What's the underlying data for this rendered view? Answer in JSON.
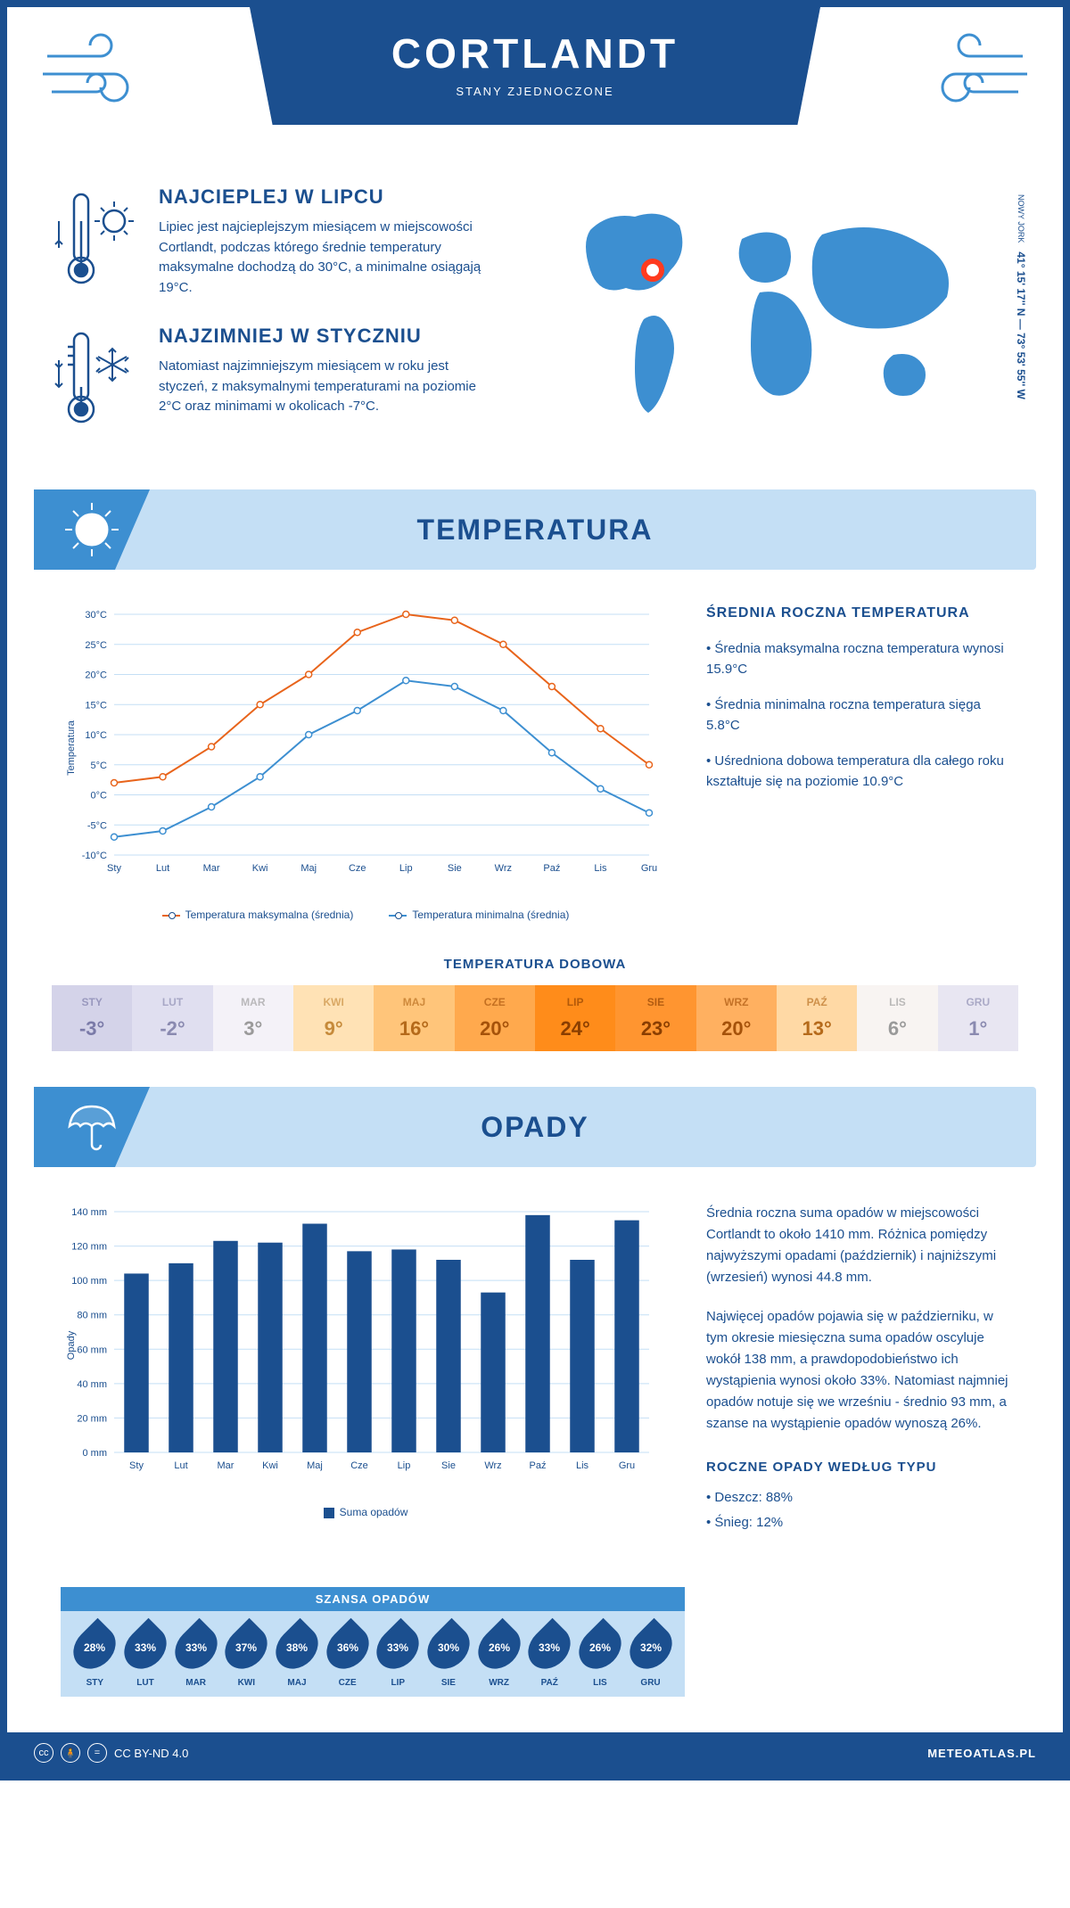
{
  "header": {
    "city": "CORTLANDT",
    "country": "STANY ZJEDNOCZONE",
    "coords": "41° 15' 17'' N — 73° 53' 55'' W",
    "state": "NOWY JORK"
  },
  "intro": {
    "hot": {
      "title": "NAJCIEPLEJ W LIPCU",
      "text": "Lipiec jest najcieplejszym miesiącem w miejscowości Cortlandt, podczas którego średnie temperatury maksymalne dochodzą do 30°C, a minimalne osiągają 19°C."
    },
    "cold": {
      "title": "NAJZIMNIEJ W STYCZNIU",
      "text": "Natomiast najzimniejszym miesiącem w roku jest styczeń, z maksymalnymi temperaturami na poziomie 2°C oraz minimami w okolicach -7°C."
    }
  },
  "months": [
    "Sty",
    "Lut",
    "Mar",
    "Kwi",
    "Maj",
    "Cze",
    "Lip",
    "Sie",
    "Wrz",
    "Paź",
    "Lis",
    "Gru"
  ],
  "months_upper": [
    "STY",
    "LUT",
    "MAR",
    "KWI",
    "MAJ",
    "CZE",
    "LIP",
    "SIE",
    "WRZ",
    "PAŹ",
    "LIS",
    "GRU"
  ],
  "temperature": {
    "section_title": "TEMPERATURA",
    "ylabel": "Temperatura",
    "ylim": [
      -10,
      30
    ],
    "ytick_step": 5,
    "max_series": {
      "label": "Temperatura maksymalna (średnia)",
      "color": "#e8641b",
      "values": [
        2,
        3,
        8,
        15,
        20,
        27,
        30,
        29,
        25,
        18,
        11,
        5
      ]
    },
    "min_series": {
      "label": "Temperatura minimalna (średnia)",
      "color": "#3d8fd1",
      "values": [
        -7,
        -6,
        -2,
        3,
        10,
        14,
        19,
        18,
        14,
        7,
        1,
        -3
      ]
    },
    "grid_color": "#c4dff5",
    "info_title": "ŚREDNIA ROCZNA TEMPERATURA",
    "info": [
      "• Średnia maksymalna roczna temperatura wynosi 15.9°C",
      "• Średnia minimalna roczna temperatura sięga 5.8°C",
      "• Uśredniona dobowa temperatura dla całego roku kształtuje się na poziomie 10.9°C"
    ],
    "daily_title": "TEMPERATURA DOBOWA",
    "daily": [
      {
        "v": "-3°",
        "bg": "#d4d3e9",
        "fg": "#7a7aa8"
      },
      {
        "v": "-2°",
        "bg": "#e0dff0",
        "fg": "#8a8ab0"
      },
      {
        "v": "3°",
        "bg": "#f4f2f8",
        "fg": "#9a9a9a"
      },
      {
        "v": "9°",
        "bg": "#ffe2b5",
        "fg": "#c68a3a"
      },
      {
        "v": "16°",
        "bg": "#ffc57a",
        "fg": "#b56a1a"
      },
      {
        "v": "20°",
        "bg": "#ffa94d",
        "fg": "#a5520a"
      },
      {
        "v": "24°",
        "bg": "#ff8c1a",
        "fg": "#8a3e00"
      },
      {
        "v": "23°",
        "bg": "#ff9530",
        "fg": "#8a3e00"
      },
      {
        "v": "20°",
        "bg": "#ffb060",
        "fg": "#a5520a"
      },
      {
        "v": "13°",
        "bg": "#ffd9a5",
        "fg": "#b56a1a"
      },
      {
        "v": "6°",
        "bg": "#f8f4f2",
        "fg": "#9a9a9a"
      },
      {
        "v": "1°",
        "bg": "#e8e6f2",
        "fg": "#8a8ab0"
      }
    ]
  },
  "precip": {
    "section_title": "OPADY",
    "ylabel": "Opady",
    "ylim": [
      0,
      140
    ],
    "ytick_step": 20,
    "bar_color": "#1b4f8f",
    "legend": "Suma opadów",
    "values": [
      104,
      110,
      123,
      122,
      133,
      117,
      118,
      112,
      93,
      138,
      112,
      135
    ],
    "text1": "Średnia roczna suma opadów w miejscowości Cortlandt to około 1410 mm. Różnica pomiędzy najwyższymi opadami (październik) i najniższymi (wrzesień) wynosi 44.8 mm.",
    "text2": "Najwięcej opadów pojawia się w październiku, w tym okresie miesięczna suma opadów oscyluje wokół 138 mm, a prawdopodobieństwo ich wystąpienia wynosi około 33%. Natomiast najmniej opadów notuje się we wrześniu - średnio 93 mm, a szanse na wystąpienie opadów wynoszą 26%.",
    "chance_title": "SZANSA OPADÓW",
    "chance": [
      "28%",
      "33%",
      "33%",
      "37%",
      "38%",
      "36%",
      "33%",
      "30%",
      "26%",
      "33%",
      "26%",
      "32%"
    ],
    "type_title": "ROCZNE OPADY WEDŁUG TYPU",
    "type_rain": "• Deszcz: 88%",
    "type_snow": "• Śnieg: 12%"
  },
  "footer": {
    "license": "CC BY-ND 4.0",
    "site": "METEOATLAS.PL"
  }
}
